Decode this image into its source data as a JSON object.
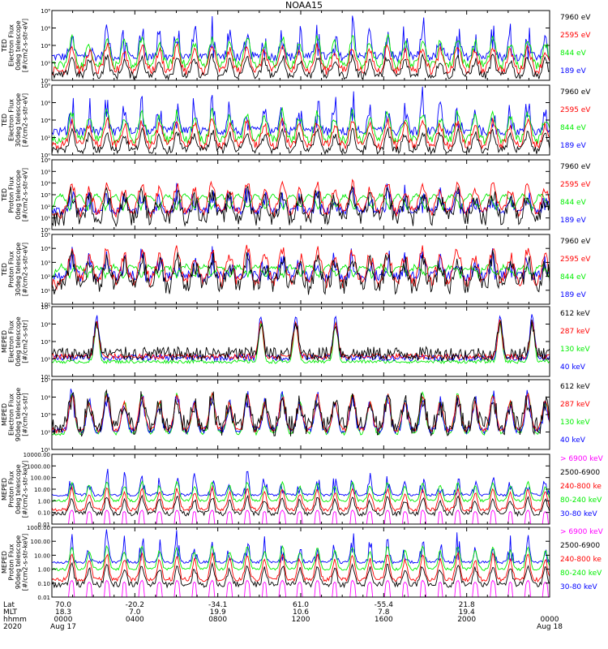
{
  "title": "NOAA15",
  "colors": {
    "black": "#000000",
    "red": "#ff0000",
    "green": "#00ee00",
    "blue": "#0000ff",
    "magenta": "#ff00ff"
  },
  "panels": [
    {
      "id": "ted-e-0",
      "ylabel": [
        "TED",
        "Electron Flux",
        "0deg telescope",
        "[#/cm2-s-str-eV]"
      ],
      "scale": "log",
      "ylim_exp": [
        0,
        8
      ],
      "ticks": [
        "10⁰",
        "10²",
        "10⁴",
        "10⁶",
        "10⁸"
      ],
      "legend": [
        {
          "text": "7960 eV",
          "color": "black"
        },
        {
          "text": "2595 eV",
          "color": "red"
        },
        {
          "text": "844 eV",
          "color": "green"
        },
        {
          "text": "189 eV",
          "color": "blue"
        }
      ],
      "profile": "ted-e"
    },
    {
      "id": "ted-e-30",
      "ylabel": [
        "TED",
        "Electron Flux",
        "30deg telescope",
        "[#/cm2-s-str-eV]"
      ],
      "scale": "log",
      "ylim_exp": [
        0,
        8
      ],
      "ticks": [
        "10⁰",
        "10²",
        "10⁴",
        "10⁶",
        "10⁸"
      ],
      "legend": [
        {
          "text": "7960 eV",
          "color": "black"
        },
        {
          "text": "2595 eV",
          "color": "red"
        },
        {
          "text": "844 eV",
          "color": "green"
        },
        {
          "text": "189 eV",
          "color": "blue"
        }
      ],
      "profile": "ted-e"
    },
    {
      "id": "ted-p-0",
      "ylabel": [
        "TED",
        "Proton Flux",
        "0deg telescope",
        "[#/cm2-s-str-eV]"
      ],
      "scale": "log",
      "ylim_exp": [
        0,
        6
      ],
      "ticks": [
        "10⁰",
        "10¹",
        "10²",
        "10³",
        "10⁴",
        "10⁵",
        "10⁶"
      ],
      "legend": [
        {
          "text": "7960 eV",
          "color": "black"
        },
        {
          "text": "2595 eV",
          "color": "red"
        },
        {
          "text": "844 eV",
          "color": "green"
        },
        {
          "text": "189 eV",
          "color": "blue"
        }
      ],
      "profile": "ted-p0"
    },
    {
      "id": "ted-p-30",
      "ylabel": [
        "TED",
        "Proton Flux",
        "30deg telescope",
        "[#/cm2-s-str-eV]"
      ],
      "scale": "log",
      "ylim_exp": [
        0,
        5
      ],
      "ticks": [
        "10⁰",
        "10¹",
        "10²",
        "10³",
        "10⁴",
        "10⁵"
      ],
      "legend": [
        {
          "text": "7960 eV",
          "color": "black"
        },
        {
          "text": "2595 eV",
          "color": "red"
        },
        {
          "text": "844 eV",
          "color": "green"
        },
        {
          "text": "189 eV",
          "color": "blue"
        }
      ],
      "profile": "ted-p30"
    },
    {
      "id": "mep-e-0",
      "ylabel": [
        "MEPED",
        "Electron Flux",
        "0deg telescope",
        "[#/cm2-s-str]"
      ],
      "scale": "log",
      "ylim_exp": [
        1,
        5
      ],
      "ticks": [
        "10¹",
        "10²",
        "10³",
        "10⁴",
        "10⁵"
      ],
      "legend": [
        {
          "text": "612 keV",
          "color": "black"
        },
        {
          "text": "287 keV",
          "color": "red"
        },
        {
          "text": "130 keV",
          "color": "green"
        },
        {
          "text": "40 keV",
          "color": "blue"
        }
      ],
      "profile": "mep-e0"
    },
    {
      "id": "mep-e-90",
      "ylabel": [
        "MEPED",
        "Electron Flux",
        "90deg telescope",
        "[#/cm2-s-str]"
      ],
      "scale": "log",
      "ylim_exp": [
        1,
        5
      ],
      "ticks": [
        "10¹",
        "10²",
        "10³",
        "10⁴",
        "10⁵"
      ],
      "legend": [
        {
          "text": "612 keV",
          "color": "black"
        },
        {
          "text": "287 keV",
          "color": "red"
        },
        {
          "text": "130 keV",
          "color": "green"
        },
        {
          "text": "40 keV",
          "color": "blue"
        }
      ],
      "profile": "mep-e90"
    },
    {
      "id": "mep-p-0",
      "ylabel": [
        "MEPED",
        "Proton Flux",
        "0deg telescope",
        "[#/cm2-s-str-keV]"
      ],
      "scale": "log",
      "ylim_exp": [
        -2,
        4
      ],
      "ticks": [
        "0.01",
        "0.10",
        "1.00",
        "10.00",
        "100.00",
        "1000.00",
        "10000.00"
      ],
      "legend": [
        {
          "text": "> 6900 keV",
          "color": "magenta"
        },
        {
          "text": "2500-6900",
          "color": "black"
        },
        {
          "text": "240-800 ke",
          "color": "red"
        },
        {
          "text": "80-240 keV",
          "color": "green"
        },
        {
          "text": "30-80 keV",
          "color": "blue"
        }
      ],
      "profile": "mep-p"
    },
    {
      "id": "mep-p-90",
      "ylabel": [
        "MEPED",
        "Proton Flux",
        "90deg telescope",
        "[#/cm2-s-str-keV]"
      ],
      "scale": "log",
      "ylim_exp": [
        -2,
        3
      ],
      "ticks": [
        "0.01",
        "0.10",
        "1.00",
        "10.00",
        "100.00",
        "1000.00"
      ],
      "legend": [
        {
          "text": "> 6900 keV",
          "color": "magenta"
        },
        {
          "text": "2500-6900",
          "color": "black"
        },
        {
          "text": "240-800 ke",
          "color": "red"
        },
        {
          "text": "80-240 keV",
          "color": "green"
        },
        {
          "text": "30-80 keV",
          "color": "blue"
        }
      ],
      "profile": "mep-p"
    }
  ],
  "xaxis": {
    "row_labels": [
      "Lat",
      "MLT",
      "hhmm",
      "2020"
    ],
    "columns": [
      {
        "lat": "70.0",
        "mlt": "18.3",
        "time": "0000",
        "date": "Aug 17"
      },
      {
        "lat": "-20.2",
        "mlt": "7.0",
        "time": "0400",
        "date": ""
      },
      {
        "lat": "-34.1",
        "mlt": "19.9",
        "time": "0800",
        "date": ""
      },
      {
        "lat": "61.0",
        "mlt": "10.6",
        "time": "1200",
        "date": ""
      },
      {
        "lat": "-55.4",
        "mlt": "7.8",
        "time": "1600",
        "date": ""
      },
      {
        "lat": "21.8",
        "mlt": "19.4",
        "time": "2000",
        "date": ""
      },
      {
        "lat": "",
        "mlt": "",
        "time": "0000",
        "date": "Aug 18"
      }
    ]
  },
  "chart_data": {
    "type": "line",
    "title": "NOAA15",
    "x_range_hours": [
      0,
      24
    ],
    "note": "Multi-panel time series of particle flux (log scale) for TED and MEPED instruments over 24 hours; ~14 orbital passes with flux peaks at high latitudes."
  }
}
